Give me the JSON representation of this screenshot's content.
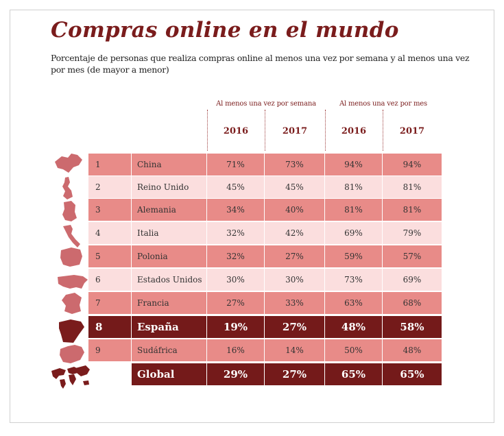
{
  "title": "Compras online en el mundo",
  "subtitle": "Porcentaje de personas que realiza compras online al menos una vez por semana y al menos una vez por mes (de mayor a menor)",
  "colors": {
    "title": "#7a1c1c",
    "row_dark": "#e88b88",
    "row_light": "#fbdede",
    "row_highlight": "#741a1a",
    "map_light": "#cc6a6e",
    "map_dark": "#7a1c1c"
  },
  "chart_data": {
    "type": "table",
    "column_groups": [
      {
        "label": "Al menos una vez por semana",
        "years": [
          "2016",
          "2017"
        ]
      },
      {
        "label": "Al menos una vez por mes",
        "years": [
          "2016",
          "2017"
        ]
      }
    ],
    "rows": [
      {
        "rank": "1",
        "country": "China",
        "icon": "china-map-icon",
        "values": [
          "71%",
          "73%",
          "94%",
          "94%"
        ]
      },
      {
        "rank": "2",
        "country": "Reino Unido",
        "icon": "uk-map-icon",
        "values": [
          "45%",
          "45%",
          "81%",
          "81%"
        ]
      },
      {
        "rank": "3",
        "country": "Alemania",
        "icon": "germany-map-icon",
        "values": [
          "34%",
          "40%",
          "81%",
          "81%"
        ]
      },
      {
        "rank": "4",
        "country": "Italia",
        "icon": "italy-map-icon",
        "values": [
          "32%",
          "42%",
          "69%",
          "79%"
        ]
      },
      {
        "rank": "5",
        "country": "Polonia",
        "icon": "poland-map-icon",
        "values": [
          "32%",
          "27%",
          "59%",
          "57%"
        ]
      },
      {
        "rank": "6",
        "country": "Estados Unidos",
        "icon": "usa-map-icon",
        "values": [
          "30%",
          "30%",
          "73%",
          "69%"
        ]
      },
      {
        "rank": "7",
        "country": "Francia",
        "icon": "france-map-icon",
        "values": [
          "27%",
          "33%",
          "63%",
          "68%"
        ]
      },
      {
        "rank": "8",
        "country": "España",
        "icon": "spain-map-icon",
        "values": [
          "19%",
          "27%",
          "48%",
          "58%"
        ],
        "highlight": true
      },
      {
        "rank": "9",
        "country": "Sudáfrica",
        "icon": "south-africa-map-icon",
        "values": [
          "16%",
          "14%",
          "50%",
          "48%"
        ]
      }
    ],
    "total": {
      "country": "Global",
      "icon": "world-map-icon",
      "values": [
        "29%",
        "27%",
        "65%",
        "65%"
      ]
    }
  }
}
